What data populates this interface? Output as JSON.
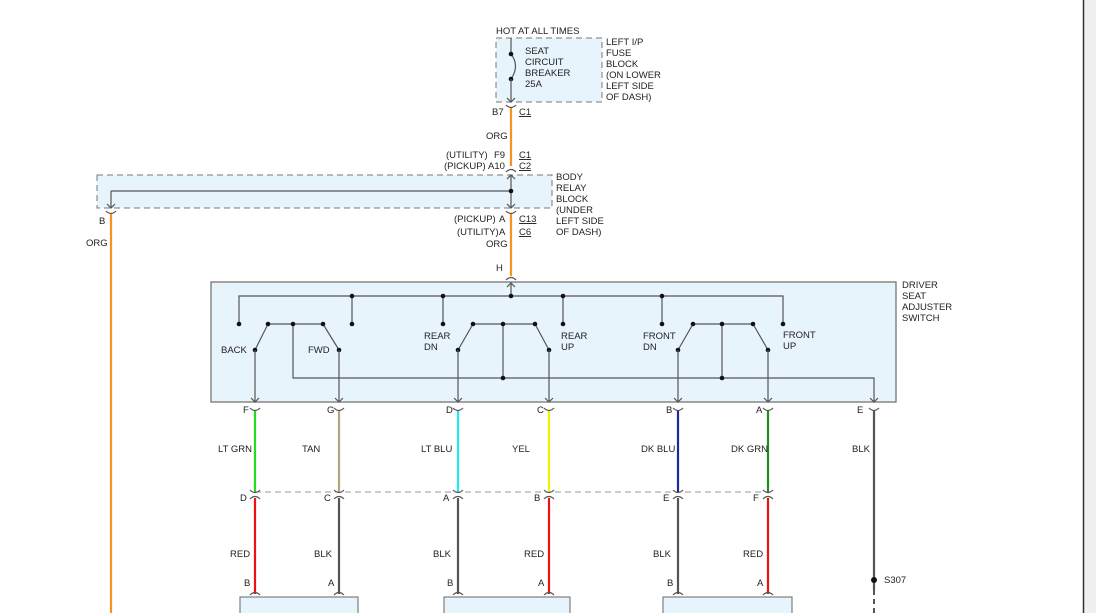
{
  "fuse_block": {
    "supply": "HOT AT ALL TIMES",
    "breaker": [
      "SEAT",
      "CIRCUIT",
      "BREAKER",
      "25A"
    ],
    "label": [
      "LEFT I/P",
      "FUSE",
      "BLOCK",
      "(ON LOWER",
      "LEFT SIDE",
      "OF DASH)"
    ],
    "pin": "B7",
    "connector": "C1"
  },
  "upper_wire": {
    "color_label": "ORG",
    "color": "#f7931e"
  },
  "relay_in": {
    "utility_tag": "(UTILITY)",
    "utility_pin": "F9",
    "utility_conn": "C1",
    "pickup_tag": "(PICKUP)",
    "pickup_pin": "A10",
    "pickup_conn": "C2"
  },
  "body_relay_block": {
    "label": [
      "BODY",
      "RELAY",
      "BLOCK",
      "(UNDER",
      "LEFT SIDE",
      "OF DASH)"
    ],
    "left_pin": "B",
    "left_wire": "ORG"
  },
  "relay_out": {
    "pickup_tag": "(PICKUP)",
    "pickup_pin": "A",
    "pickup_conn": "C13",
    "utility_tag": "(UTILITY)",
    "utility_pin": "A",
    "utility_conn": "C6",
    "wire": "ORG"
  },
  "switch": {
    "label": [
      "DRIVER",
      "SEAT",
      "ADJUSTER",
      "SWITCH"
    ],
    "input_pin": "H",
    "positions": {
      "back": "BACK",
      "fwd": "FWD",
      "rear_dn": [
        "REAR",
        "DN"
      ],
      "rear_up": [
        "REAR",
        "UP"
      ],
      "front_dn": [
        "FRONT",
        "DN"
      ],
      "front_up": [
        "FRONT",
        "UP"
      ]
    }
  },
  "circuits": [
    {
      "switch_pin": "F",
      "wire": "LT GRN",
      "color": "#22dd22",
      "harness_pin": "D",
      "motor_wire": "RED",
      "motor_color": "#ee1111",
      "motor_pin": "B"
    },
    {
      "switch_pin": "G",
      "wire": "TAN",
      "color": "#b8a37c",
      "harness_pin": "C",
      "motor_wire": "BLK",
      "motor_color": "#555555",
      "motor_pin": "A"
    },
    {
      "switch_pin": "D",
      "wire": "LT BLU",
      "color": "#22e6f2",
      "harness_pin": "A",
      "motor_wire": "BLK",
      "motor_color": "#555555",
      "motor_pin": "B"
    },
    {
      "switch_pin": "C",
      "wire": "YEL",
      "color": "#f2f200",
      "harness_pin": "B",
      "motor_wire": "RED",
      "motor_color": "#ee1111",
      "motor_pin": "A"
    },
    {
      "switch_pin": "B",
      "wire": "DK BLU",
      "color": "#1a2a9a",
      "harness_pin": "E",
      "motor_wire": "BLK",
      "motor_color": "#555555",
      "motor_pin": "B"
    },
    {
      "switch_pin": "A",
      "wire": "DK GRN",
      "color": "#228b22",
      "harness_pin": "F",
      "motor_wire": "RED",
      "motor_color": "#ee1111",
      "motor_pin": "A"
    }
  ],
  "ground": {
    "switch_pin": "E",
    "wire": "BLK",
    "splice": "S307"
  }
}
